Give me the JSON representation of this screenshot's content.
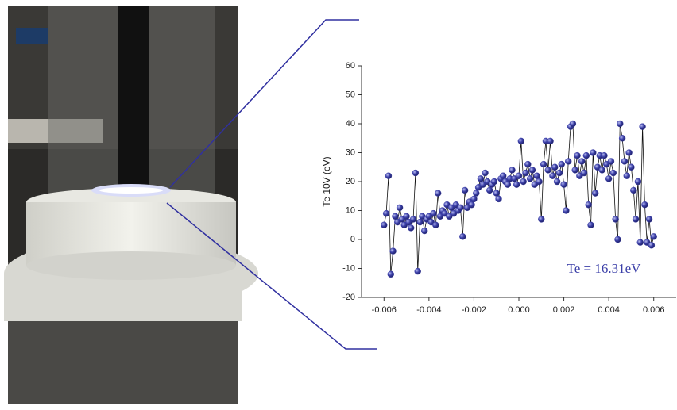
{
  "chart_data": {
    "type": "line",
    "y_label": "Te 10V (eV)",
    "annotation": "Te = 16.31eV",
    "xlim": [
      -0.007,
      0.007
    ],
    "ylim": [
      -20,
      60
    ],
    "xticks": [
      -0.006,
      -0.004,
      -0.002,
      {
        "value": 0,
        "label": "0.000"
      },
      0.002,
      0.004,
      0.006
    ],
    "yticks": [
      -20,
      -10,
      0,
      10,
      20,
      30,
      40,
      50,
      60
    ],
    "x": [
      -0.006,
      -0.0059,
      -0.0058,
      -0.0057,
      -0.0056,
      -0.0055,
      -0.0054,
      -0.0053,
      -0.0052,
      -0.0051,
      -0.005,
      -0.0049,
      -0.0048,
      -0.0047,
      -0.0046,
      -0.0045,
      -0.0044,
      -0.0043,
      -0.0042,
      -0.0041,
      -0.004,
      -0.0039,
      -0.0038,
      -0.0037,
      -0.0036,
      -0.0035,
      -0.0034,
      -0.0033,
      -0.0032,
      -0.0031,
      -0.003,
      -0.0029,
      -0.0028,
      -0.0027,
      -0.0026,
      -0.0025,
      -0.0024,
      -0.0023,
      -0.0022,
      -0.0021,
      -0.002,
      -0.0019,
      -0.0018,
      -0.0017,
      -0.0016,
      -0.0015,
      -0.0014,
      -0.0013,
      -0.0012,
      -0.0011,
      -0.001,
      -0.0009,
      -0.0008,
      -0.0007,
      -0.0006,
      -0.0005,
      -0.0004,
      -0.0003,
      -0.0002,
      -0.0001,
      0,
      0.0001,
      0.0002,
      0.0003,
      0.0004,
      0.0005,
      0.0006,
      0.0007,
      0.0008,
      0.0009,
      0.001,
      0.0011,
      0.0012,
      0.0013,
      0.0014,
      0.0015,
      0.0016,
      0.0017,
      0.0018,
      0.0019,
      0.002,
      0.0021,
      0.0022,
      0.0023,
      0.0024,
      0.0025,
      0.0026,
      0.0027,
      0.0028,
      0.0029,
      0.003,
      0.0031,
      0.0032,
      0.0033,
      0.0034,
      0.0035,
      0.0036,
      0.0037,
      0.0038,
      0.0039,
      0.004,
      0.0041,
      0.0042,
      0.0043,
      0.0044,
      0.0045,
      0.0046,
      0.0047,
      0.0048,
      0.0049,
      0.005,
      0.0051,
      0.0052,
      0.0053,
      0.0054,
      0.0055,
      0.0056,
      0.0057,
      0.0058,
      0.0059,
      0.006
    ],
    "series": [
      {
        "color": "#3b3fa8",
        "values": [
          5,
          9,
          22,
          -12,
          -4,
          8,
          6,
          11,
          7,
          5,
          8,
          6,
          4,
          7,
          23,
          -11,
          6,
          8,
          3,
          7,
          8,
          6,
          9,
          5,
          16,
          8,
          10,
          9,
          12,
          8,
          11,
          9,
          12,
          10,
          11,
          1,
          17,
          11,
          13,
          12,
          14,
          16,
          18,
          21,
          19,
          23,
          20,
          17,
          19,
          20,
          16,
          14,
          21,
          22,
          20,
          19,
          21,
          24,
          21,
          19,
          22,
          34,
          20,
          23,
          26,
          21,
          24,
          19,
          22,
          20,
          7,
          26,
          34,
          24,
          34,
          22,
          25,
          20,
          23,
          26,
          19,
          10,
          27,
          39,
          40,
          24,
          29,
          22,
          27,
          23,
          29,
          12,
          5,
          30,
          16,
          25,
          29,
          24,
          29,
          26,
          21,
          27,
          23,
          7,
          0,
          40,
          35,
          27,
          22,
          30,
          25,
          17,
          7,
          20,
          -1,
          39,
          12,
          -1,
          7,
          -2,
          1
        ]
      }
    ]
  }
}
